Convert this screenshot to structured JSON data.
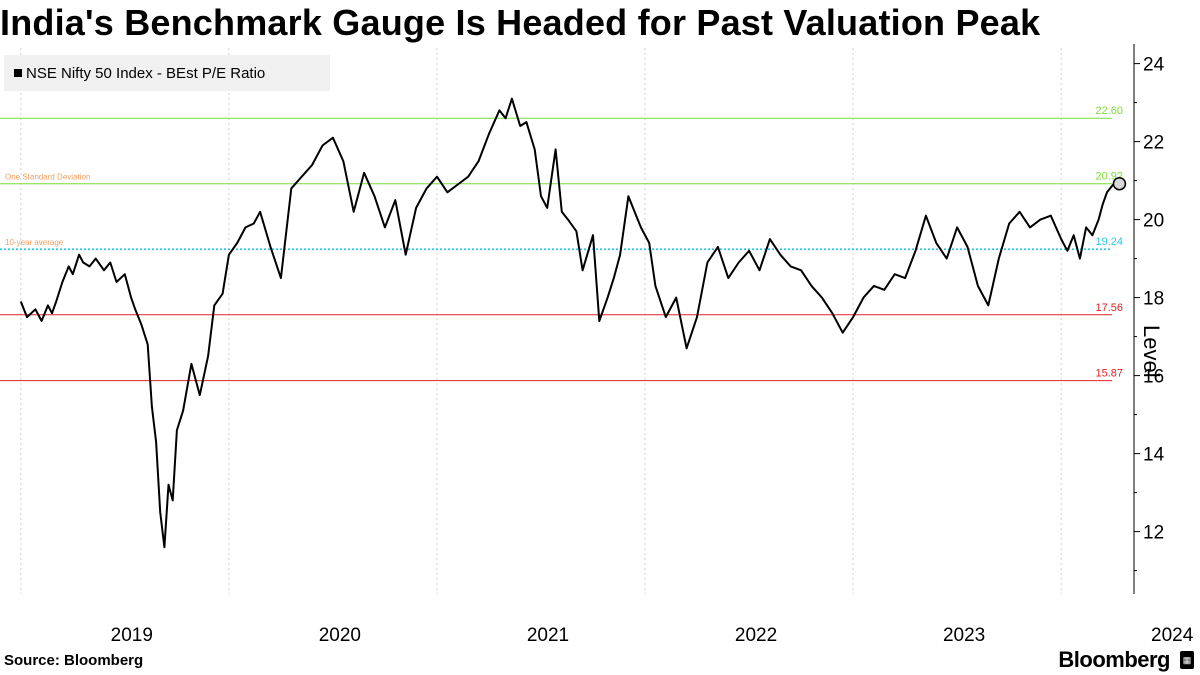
{
  "title": "India's Benchmark Gauge Is Headed for Past Valuation Peak",
  "source": "Source: Bloomberg",
  "brand": "Bloomberg",
  "colors": {
    "series": "#000000",
    "peak": "#7fdc3a",
    "avg": "#29c8e6",
    "low": "#e02424",
    "annotation": "#f0a060",
    "grid": "#d0d0d0"
  },
  "chart_data": {
    "type": "line",
    "title": "India's Benchmark Gauge Is Headed for Past Valuation Peak",
    "xlabel": "",
    "ylabel": "Level",
    "legend": [
      "NSE Nifty 50 Index - BEst P/E Ratio"
    ],
    "legend_position": "top-left",
    "xlim": [
      2018.9,
      2024.35
    ],
    "ylim": [
      10.4,
      24.4
    ],
    "x_ticks": [
      2019,
      2020,
      2021,
      2022,
      2023,
      2024
    ],
    "x_tick_labels": [
      "2019",
      "2020",
      "2021",
      "2022",
      "2023",
      "2024"
    ],
    "y_ticks": [
      12,
      14,
      16,
      18,
      20,
      22,
      24
    ],
    "y_tick_labels": [
      "12",
      "14",
      "16",
      "18",
      "20",
      "22",
      "24"
    ],
    "reference_lines": [
      {
        "value": 22.6,
        "label": "22.60",
        "color": "#7fdc3a"
      },
      {
        "value": 20.92,
        "label": "20.92",
        "color": "#7fdc3a",
        "annotation": "One Standard Deviation"
      },
      {
        "value": 19.24,
        "label": "19.24",
        "color": "#29c8e6",
        "annotation": "10-year average",
        "dotted": true
      },
      {
        "value": 17.56,
        "label": "17.56",
        "color": "#e02424"
      },
      {
        "value": 15.87,
        "label": "15.87",
        "color": "#e02424"
      }
    ],
    "series": [
      {
        "name": "NSE Nifty 50 Index - BEst P/E Ratio",
        "x": [
          2019.0,
          2019.03,
          2019.07,
          2019.1,
          2019.13,
          2019.15,
          2019.17,
          2019.2,
          2019.23,
          2019.25,
          2019.28,
          2019.3,
          2019.33,
          2019.36,
          2019.4,
          2019.43,
          2019.46,
          2019.5,
          2019.53,
          2019.55,
          2019.58,
          2019.61,
          2019.63,
          2019.65,
          2019.67,
          2019.69,
          2019.71,
          2019.73,
          2019.75,
          2019.78,
          2019.82,
          2019.86,
          2019.9,
          2019.93,
          2019.97,
          2020.0,
          2020.04,
          2020.08,
          2020.12,
          2020.15,
          2020.2,
          2020.25,
          2020.3,
          2020.35,
          2020.4,
          2020.45,
          2020.5,
          2020.55,
          2020.6,
          2020.65,
          2020.7,
          2020.75,
          2020.8,
          2020.85,
          2020.9,
          2020.95,
          2021.0,
          2021.05,
          2021.1,
          2021.15,
          2021.2,
          2021.25,
          2021.3,
          2021.33,
          2021.36,
          2021.4,
          2021.43,
          2021.47,
          2021.5,
          2021.53,
          2021.57,
          2021.6,
          2021.63,
          2021.67,
          2021.7,
          2021.75,
          2021.78,
          2021.82,
          2021.85,
          2021.88,
          2021.92,
          2021.95,
          2021.98,
          2022.02,
          2022.05,
          2022.1,
          2022.15,
          2022.2,
          2022.25,
          2022.3,
          2022.35,
          2022.4,
          2022.45,
          2022.5,
          2022.55,
          2022.6,
          2022.65,
          2022.7,
          2022.75,
          2022.8,
          2022.85,
          2022.9,
          2022.95,
          2023.0,
          2023.05,
          2023.1,
          2023.15,
          2023.2,
          2023.25,
          2023.3,
          2023.35,
          2023.4,
          2023.45,
          2023.5,
          2023.55,
          2023.6,
          2023.65,
          2023.7,
          2023.75,
          2023.8,
          2023.85,
          2023.9,
          2023.95,
          2024.0,
          2024.03,
          2024.06,
          2024.09,
          2024.12,
          2024.15,
          2024.18,
          2024.2,
          2024.22,
          2024.25,
          2024.28
        ],
        "values": [
          17.9,
          17.5,
          17.7,
          17.4,
          17.8,
          17.6,
          17.9,
          18.4,
          18.8,
          18.6,
          19.1,
          18.9,
          18.8,
          19.0,
          18.7,
          18.9,
          18.4,
          18.6,
          18.0,
          17.7,
          17.3,
          16.8,
          15.2,
          14.3,
          12.5,
          11.6,
          13.2,
          12.8,
          14.6,
          15.1,
          16.3,
          15.5,
          16.5,
          17.8,
          18.1,
          19.1,
          19.4,
          19.8,
          19.9,
          20.2,
          19.3,
          18.5,
          20.8,
          21.1,
          21.4,
          21.9,
          22.1,
          21.5,
          20.2,
          21.2,
          20.6,
          19.8,
          20.5,
          19.1,
          20.3,
          20.8,
          21.1,
          20.7,
          20.9,
          21.1,
          21.5,
          22.2,
          22.8,
          22.6,
          23.1,
          22.4,
          22.5,
          21.8,
          20.6,
          20.3,
          21.8,
          20.2,
          20.0,
          19.7,
          18.7,
          19.6,
          17.4,
          18.0,
          18.5,
          19.1,
          20.6,
          20.2,
          19.8,
          19.4,
          18.3,
          17.5,
          18.0,
          16.7,
          17.5,
          18.9,
          19.3,
          18.5,
          18.9,
          19.2,
          18.7,
          19.5,
          19.1,
          18.8,
          18.7,
          18.3,
          18.0,
          17.6,
          17.1,
          17.5,
          18.0,
          18.3,
          18.2,
          18.6,
          18.5,
          19.2,
          20.1,
          19.4,
          19.0,
          19.8,
          19.3,
          18.3,
          17.8,
          19.0,
          19.9,
          20.2,
          19.8,
          20.0,
          20.1,
          19.5,
          19.2,
          19.6,
          19.0,
          19.8,
          19.6,
          20.0,
          20.4,
          20.7,
          20.9,
          20.92
        ]
      }
    ],
    "last_point": {
      "x": 2024.28,
      "value": 20.92
    }
  },
  "legend": {
    "label": "NSE Nifty 50 Index - BEst P/E Ratio"
  }
}
